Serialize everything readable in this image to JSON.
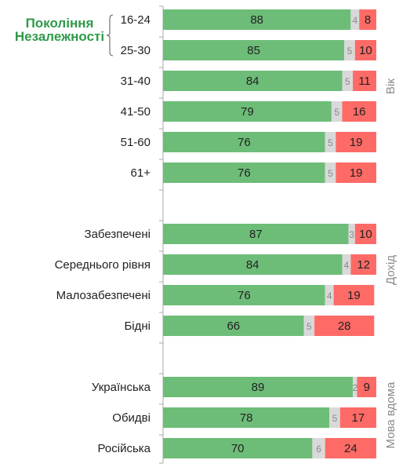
{
  "highlight_label": [
    "Покоління",
    "Незалежності"
  ],
  "colors": {
    "positive": "#6dbd78",
    "neutral": "#d9d9d9",
    "negative": "#fe6a66",
    "highlight": "#2e9a4a",
    "axis": "#aaaaaa"
  },
  "chart_data": {
    "type": "bar",
    "stacked": true,
    "orientation": "horizontal",
    "xlim": [
      0,
      100
    ],
    "groups": [
      {
        "label": "Вік",
        "categories": [
          "16-24",
          "25-30",
          "31-40",
          "41-50",
          "51-60",
          "61+"
        ]
      },
      {
        "label": "Дохід",
        "categories": [
          "Забезпечені",
          "Середнього рівня",
          "Малозабезпечені",
          "Бідні"
        ]
      },
      {
        "label": "Мова вдома",
        "categories": [
          "Українська",
          "Обидві",
          "Російська"
        ]
      }
    ],
    "categories": [
      "16-24",
      "25-30",
      "31-40",
      "41-50",
      "51-60",
      "61+",
      "Забезпечені",
      "Середнього рівня",
      "Малозабезпечені",
      "Бідні",
      "Українська",
      "Обидві",
      "Російська"
    ],
    "series": [
      {
        "values": [
          88,
          85,
          84,
          79,
          76,
          76,
          87,
          84,
          76,
          66,
          89,
          78,
          70
        ]
      },
      {
        "values": [
          4,
          5,
          5,
          5,
          5,
          5,
          3,
          4,
          4,
          5,
          2,
          5,
          6
        ]
      },
      {
        "values": [
          8,
          10,
          11,
          16,
          19,
          19,
          10,
          12,
          19,
          28,
          9,
          17,
          24
        ]
      }
    ]
  }
}
